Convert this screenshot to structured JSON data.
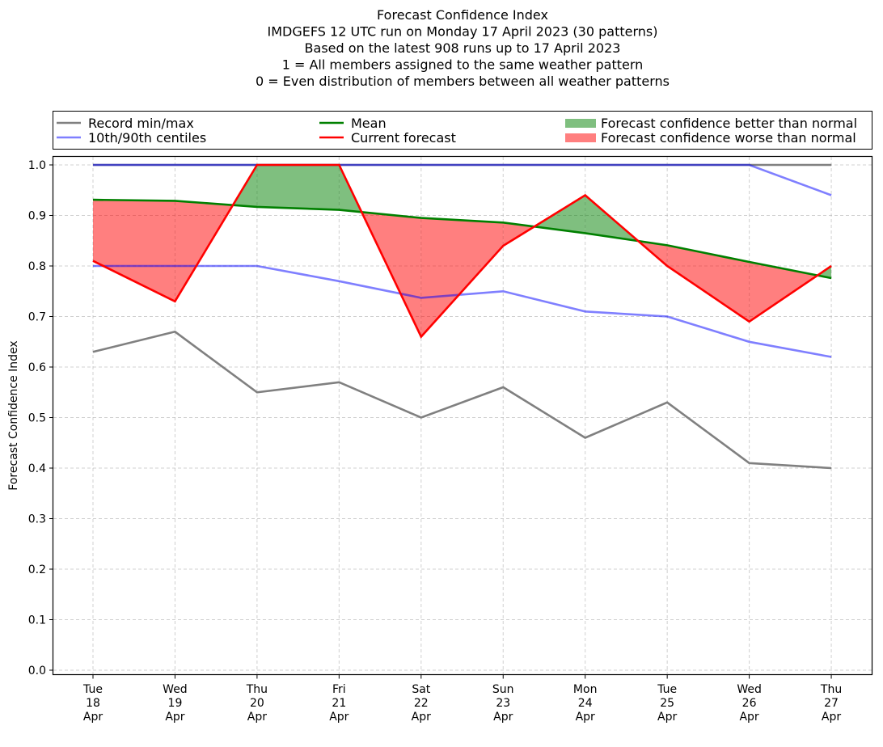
{
  "chart_data": {
    "type": "line",
    "title_lines": [
      "Forecast Confidence Index",
      "IMDGEFS 12 UTC run on Monday 17 April 2023 (30 patterns)",
      "Based on the latest 908 runs up to 17 April 2023",
      "1 = All members assigned to the same weather pattern",
      "0 = Even distribution of members between all weather patterns"
    ],
    "xlabel": "",
    "ylabel": "Forecast Confidence Index",
    "ylim": [
      0.0,
      1.0
    ],
    "yticks": [
      "0.0",
      "0.1",
      "0.2",
      "0.3",
      "0.4",
      "0.5",
      "0.6",
      "0.7",
      "0.8",
      "0.9",
      "1.0"
    ],
    "grid": true,
    "categories": [
      [
        "Tue",
        "18",
        "Apr"
      ],
      [
        "Wed",
        "19",
        "Apr"
      ],
      [
        "Thu",
        "20",
        "Apr"
      ],
      [
        "Fri",
        "21",
        "Apr"
      ],
      [
        "Sat",
        "22",
        "Apr"
      ],
      [
        "Sun",
        "23",
        "Apr"
      ],
      [
        "Mon",
        "24",
        "Apr"
      ],
      [
        "Tue",
        "25",
        "Apr"
      ],
      [
        "Wed",
        "26",
        "Apr"
      ],
      [
        "Thu",
        "27",
        "Apr"
      ]
    ],
    "series": [
      {
        "name": "Record min",
        "legend_group": "Record min/max",
        "color": "#808080",
        "alpha": 1.0,
        "values": [
          0.63,
          0.67,
          0.55,
          0.57,
          0.5,
          0.56,
          0.46,
          0.53,
          0.41,
          0.4
        ]
      },
      {
        "name": "Record max",
        "legend_group": "Record min/max",
        "color": "#808080",
        "alpha": 1.0,
        "values": [
          1.0,
          1.0,
          1.0,
          1.0,
          1.0,
          1.0,
          1.0,
          1.0,
          1.0,
          1.0
        ]
      },
      {
        "name": "10th centile",
        "legend_group": "10th/90th centiles",
        "color": "#0000ff",
        "alpha": 0.5,
        "values": [
          0.8,
          0.8,
          0.8,
          0.77,
          0.737,
          0.75,
          0.71,
          0.7,
          0.65,
          0.62
        ]
      },
      {
        "name": "90th centile",
        "legend_group": "10th/90th centiles",
        "color": "#0000ff",
        "alpha": 0.5,
        "values": [
          1.0,
          1.0,
          1.0,
          1.0,
          1.0,
          1.0,
          1.0,
          1.0,
          1.0,
          0.94
        ]
      },
      {
        "name": "Mean",
        "legend_group": "Mean",
        "color": "#008000",
        "alpha": 1.0,
        "values": [
          0.931,
          0.929,
          0.917,
          0.911,
          0.895,
          0.886,
          0.865,
          0.841,
          0.808,
          0.776
        ]
      },
      {
        "name": "Current forecast",
        "legend_group": "Current forecast",
        "color": "#ff0000",
        "alpha": 1.0,
        "values": [
          0.81,
          0.73,
          1.0,
          1.0,
          0.66,
          0.84,
          0.94,
          0.8,
          0.69,
          0.8
        ]
      }
    ],
    "fills": {
      "better": {
        "label": "Forecast confidence better than normal",
        "color": "#008000",
        "alpha": 0.5
      },
      "worse": {
        "label": "Forecast confidence worse than normal",
        "color": "#ff0000",
        "alpha": 0.5
      }
    },
    "legend": {
      "placement": "top, above plot (3 columns)",
      "entries": [
        {
          "label": "Record min/max",
          "kind": "line",
          "color": "#808080",
          "alpha": 1.0
        },
        {
          "label": "10th/90th centiles",
          "kind": "line",
          "color": "#0000ff",
          "alpha": 0.5
        },
        {
          "label": "Mean",
          "kind": "line",
          "color": "#008000",
          "alpha": 1.0
        },
        {
          "label": "Current forecast",
          "kind": "line",
          "color": "#ff0000",
          "alpha": 1.0
        },
        {
          "label": "Forecast confidence better than normal",
          "kind": "patch",
          "color": "#008000",
          "alpha": 0.5
        },
        {
          "label": "Forecast confidence worse than normal",
          "kind": "patch",
          "color": "#ff0000",
          "alpha": 0.5
        }
      ]
    }
  }
}
